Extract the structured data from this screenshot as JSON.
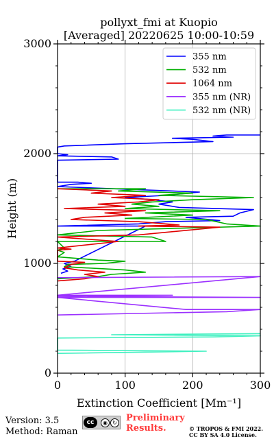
{
  "chart_data": {
    "type": "line",
    "title": "pollyxt_fmi at Kuopio",
    "subtitle": "[Averaged] 20220625 10:00-10:59",
    "xlabel": "Extinction Coefficient [Mm⁻¹]",
    "ylabel": "Height (m)",
    "xlim": [
      0,
      300
    ],
    "ylim": [
      0,
      3000
    ],
    "xticks": [
      "0",
      "100",
      "200",
      "300"
    ],
    "yticks": [
      "0",
      "1000",
      "2000",
      "3000"
    ],
    "grid": true,
    "legend_position": "top-right",
    "series": [
      {
        "name": "355 nm",
        "color": "#0000ff",
        "points": [
          [
            5,
            910
          ],
          [
            15,
            930
          ],
          [
            8,
            950
          ],
          [
            20,
            970
          ],
          [
            10,
            1000
          ],
          [
            25,
            1020
          ],
          [
            130,
            1340
          ],
          [
            0,
            1340
          ],
          [
            120,
            1360
          ],
          [
            160,
            1380
          ],
          [
            240,
            1390
          ],
          [
            190,
            1420
          ],
          [
            260,
            1430
          ],
          [
            270,
            1460
          ],
          [
            290,
            1490
          ],
          [
            180,
            1510
          ],
          [
            150,
            1540
          ],
          [
            170,
            1560
          ],
          [
            140,
            1580
          ],
          [
            100,
            1600
          ],
          [
            160,
            1620
          ],
          [
            210,
            1650
          ],
          [
            0,
            1700
          ],
          [
            20,
            1720
          ],
          [
            50,
            1730
          ],
          [
            30,
            1740
          ],
          [
            0,
            1740
          ],
          [
            0,
            1940
          ],
          [
            90,
            1950
          ],
          [
            80,
            1970
          ],
          [
            0,
            1980
          ],
          [
            15,
            1990
          ],
          [
            0,
            2000
          ],
          [
            0,
            2060
          ],
          [
            10,
            2070
          ],
          [
            100,
            2090
          ],
          [
            230,
            2110
          ],
          [
            200,
            2130
          ],
          [
            170,
            2140
          ],
          [
            260,
            2150
          ],
          [
            230,
            2160
          ],
          [
            250,
            2170
          ],
          [
            300,
            2170
          ]
        ]
      },
      {
        "name": "532 nm",
        "color": "#00b000",
        "points": [
          [
            0,
            860
          ],
          [
            30,
            870
          ],
          [
            60,
            880
          ],
          [
            80,
            900
          ],
          [
            130,
            920
          ],
          [
            100,
            940
          ],
          [
            40,
            960
          ],
          [
            10,
            970
          ],
          [
            15,
            990
          ],
          [
            70,
            1000
          ],
          [
            100,
            1020
          ],
          [
            60,
            1030
          ],
          [
            0,
            1060
          ],
          [
            10,
            1100
          ],
          [
            0,
            1120
          ],
          [
            10,
            1140
          ],
          [
            0,
            1200
          ],
          [
            160,
            1200
          ],
          [
            140,
            1240
          ],
          [
            0,
            1260
          ],
          [
            60,
            1300
          ],
          [
            310,
            1340
          ],
          [
            250,
            1360
          ],
          [
            220,
            1400
          ],
          [
            100,
            1410
          ],
          [
            200,
            1440
          ],
          [
            130,
            1460
          ],
          [
            240,
            1480
          ],
          [
            100,
            1500
          ],
          [
            150,
            1520
          ],
          [
            110,
            1540
          ],
          [
            140,
            1560
          ],
          [
            200,
            1580
          ],
          [
            290,
            1600
          ],
          [
            150,
            1620
          ],
          [
            200,
            1640
          ],
          [
            90,
            1660
          ],
          [
            130,
            1680
          ],
          [
            0,
            1680
          ]
        ]
      },
      {
        "name": "1064 nm",
        "color": "#e00000",
        "points": [
          [
            0,
            840
          ],
          [
            40,
            860
          ],
          [
            60,
            880
          ],
          [
            40,
            900
          ],
          [
            70,
            920
          ],
          [
            30,
            940
          ],
          [
            10,
            960
          ],
          [
            20,
            990
          ],
          [
            40,
            1010
          ],
          [
            0,
            1020
          ],
          [
            0,
            1120
          ],
          [
            20,
            1130
          ],
          [
            0,
            1140
          ],
          [
            90,
            1200
          ],
          [
            0,
            1240
          ],
          [
            120,
            1260
          ],
          [
            240,
            1330
          ],
          [
            120,
            1340
          ],
          [
            180,
            1350
          ],
          [
            120,
            1380
          ],
          [
            20,
            1400
          ],
          [
            40,
            1420
          ],
          [
            110,
            1440
          ],
          [
            70,
            1460
          ],
          [
            130,
            1480
          ],
          [
            10,
            1500
          ],
          [
            100,
            1520
          ],
          [
            60,
            1540
          ],
          [
            120,
            1560
          ],
          [
            150,
            1580
          ],
          [
            80,
            1600
          ],
          [
            130,
            1620
          ],
          [
            50,
            1640
          ],
          [
            80,
            1660
          ],
          [
            0,
            1680
          ]
        ]
      },
      {
        "name": "355 nm (NR)",
        "color": "#9b30ff",
        "points": [
          [
            0,
            530
          ],
          [
            250,
            560
          ],
          [
            300,
            580
          ],
          [
            190,
            580
          ],
          [
            0,
            690
          ],
          [
            300,
            690
          ],
          [
            0,
            700
          ],
          [
            170,
            710
          ],
          [
            0,
            710
          ],
          [
            300,
            880
          ],
          [
            0,
            870
          ],
          [
            300,
            880
          ]
        ]
      },
      {
        "name": "532 nm (NR)",
        "color": "#40f0c0",
        "points": [
          [
            0,
            180
          ],
          [
            220,
            200
          ],
          [
            0,
            210
          ],
          [
            0,
            320
          ],
          [
            230,
            330
          ],
          [
            300,
            340
          ],
          [
            80,
            350
          ],
          [
            300,
            360
          ]
        ]
      }
    ]
  },
  "footer": {
    "version": "Version: 3.5",
    "method": "Method: Raman",
    "prelim_line1": "Preliminary",
    "prelim_line2": "Results.",
    "copyright_line1": "© TROPOS & FMI 2022.",
    "copyright_line2": "CC BY SA 4.0 License.",
    "badge_text": "cc"
  },
  "colors": {
    "preliminary": "#ff3b3b",
    "grid": "#b0b0b0"
  }
}
